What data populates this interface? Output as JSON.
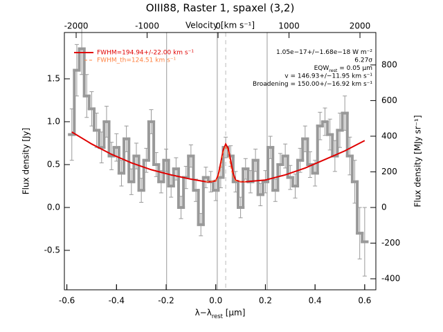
{
  "chart_data": {
    "type": "line",
    "title": "OIII88, Raster 1, spaxel (3,2)",
    "xlabel": [
      "λ−λ",
      "rest",
      " [μm]"
    ],
    "ylabel": "Flux density [Jy]",
    "x2label": "Velocity [km s⁻¹]",
    "y2label": "Flux density [MJy sr⁻¹]",
    "xlim": [
      -0.61,
      0.645
    ],
    "ylim": [
      -0.96,
      2.04
    ],
    "x2lim": [
      -2166,
      2224
    ],
    "y2lim": [
      -462,
      982
    ],
    "xticks": [
      -0.6,
      -0.4,
      -0.2,
      {
        "value": 0,
        "label": "0.0"
      },
      0.2,
      0.4,
      0.6
    ],
    "yticks": [
      -0.5,
      {
        "value": 0,
        "label": "0.0"
      },
      0.5,
      {
        "value": 1,
        "label": "1.0"
      },
      1.5
    ],
    "x2ticks": [
      -2000,
      -1000,
      0,
      1000,
      2000
    ],
    "y2ticks": [
      -400,
      -200,
      0,
      200,
      400,
      600,
      800
    ],
    "vlines": [
      -0.198,
      0.006,
      0.207
    ],
    "dashed_vline": 0.04,
    "spectrum": {
      "color": "#999999",
      "x": [
        -0.58,
        -0.56,
        -0.54,
        -0.52,
        -0.5,
        -0.48,
        -0.46,
        -0.44,
        -0.42,
        -0.4,
        -0.38,
        -0.36,
        -0.34,
        -0.32,
        -0.3,
        -0.28,
        -0.26,
        -0.24,
        -0.22,
        -0.2,
        -0.18,
        -0.16,
        -0.14,
        -0.12,
        -0.1,
        -0.08,
        -0.06,
        -0.04,
        -0.02,
        0,
        0.02,
        0.04,
        0.06,
        0.08,
        0.1,
        0.12,
        0.14,
        0.16,
        0.18,
        0.2,
        0.22,
        0.24,
        0.26,
        0.28,
        0.3,
        0.32,
        0.34,
        0.36,
        0.38,
        0.4,
        0.42,
        0.44,
        0.46,
        0.48,
        0.5,
        0.52,
        0.54,
        0.56,
        0.58,
        0.6
      ],
      "values": [
        0.85,
        1.6,
        1.85,
        1.3,
        1.15,
        0.9,
        0.7,
        1.0,
        0.6,
        0.7,
        0.4,
        0.8,
        0.3,
        0.6,
        0.2,
        0.55,
        1.0,
        0.5,
        0.3,
        0.55,
        0.25,
        0.45,
        0.0,
        0.35,
        0.6,
        0.2,
        -0.2,
        0.35,
        0.3,
        0.2,
        0.35,
        0.7,
        0.6,
        0.3,
        0.0,
        0.45,
        0.3,
        0.55,
        0.15,
        0.3,
        0.7,
        0.2,
        0.5,
        0.6,
        0.35,
        0.25,
        0.55,
        0.8,
        0.5,
        0.4,
        0.95,
        1.0,
        0.85,
        0.6,
        0.9,
        1.1,
        0.6,
        0.3,
        -0.3,
        -0.4
      ],
      "errors": [
        0.3,
        0.3,
        0.3,
        0.25,
        0.2,
        0.2,
        0.18,
        0.18,
        0.16,
        0.16,
        0.15,
        0.15,
        0.15,
        0.15,
        0.14,
        0.14,
        0.14,
        0.14,
        0.13,
        0.13,
        0.13,
        0.13,
        0.13,
        0.13,
        0.13,
        0.13,
        0.13,
        0.12,
        0.12,
        0.12,
        0.12,
        0.12,
        0.12,
        0.12,
        0.12,
        0.12,
        0.13,
        0.13,
        0.13,
        0.13,
        0.13,
        0.13,
        0.13,
        0.14,
        0.14,
        0.14,
        0.14,
        0.15,
        0.15,
        0.15,
        0.16,
        0.16,
        0.18,
        0.18,
        0.2,
        0.2,
        0.22,
        0.25,
        0.3,
        0.4
      ]
    },
    "series": [
      {
        "name": "FWHM=194.94+/-22.00 km s⁻¹",
        "color": "#e00000",
        "dash": false,
        "x": [
          -0.58,
          -0.5,
          -0.42,
          -0.34,
          -0.26,
          -0.18,
          -0.1,
          -0.04,
          -0.02,
          0,
          0.01,
          0.02,
          0.03,
          0.04,
          0.05,
          0.06,
          0.07,
          0.08,
          0.1,
          0.12,
          0.2,
          0.28,
          0.36,
          0.44,
          0.52,
          0.6
        ],
        "values": [
          0.88,
          0.74,
          0.62,
          0.52,
          0.44,
          0.38,
          0.33,
          0.3,
          0.3,
          0.31,
          0.38,
          0.52,
          0.67,
          0.74,
          0.69,
          0.55,
          0.4,
          0.32,
          0.3,
          0.3,
          0.32,
          0.38,
          0.46,
          0.56,
          0.66,
          0.78
        ]
      },
      {
        "name": "FWHM_th=124.51 km s⁻¹",
        "color": "#ff8040",
        "dash": true,
        "x": [
          -0.04,
          0,
          0.01,
          0.02,
          0.03,
          0.04,
          0.05,
          0.06,
          0.07,
          0.08,
          0.12
        ],
        "values": [
          0.3,
          0.31,
          0.35,
          0.47,
          0.64,
          0.72,
          0.65,
          0.48,
          0.35,
          0.31,
          0.3
        ]
      }
    ],
    "annotations": [
      [
        "1.05e−17+/−1.68e−18 W m⁻²"
      ],
      [
        "6.27σ"
      ],
      [
        "EQW",
        "rest",
        " = 0.05 μm"
      ],
      [
        "v = 146.93+/−11.95 km s⁻¹"
      ],
      [
        "Broadening = 150.00+/−16.92 km s⁻¹"
      ]
    ]
  }
}
